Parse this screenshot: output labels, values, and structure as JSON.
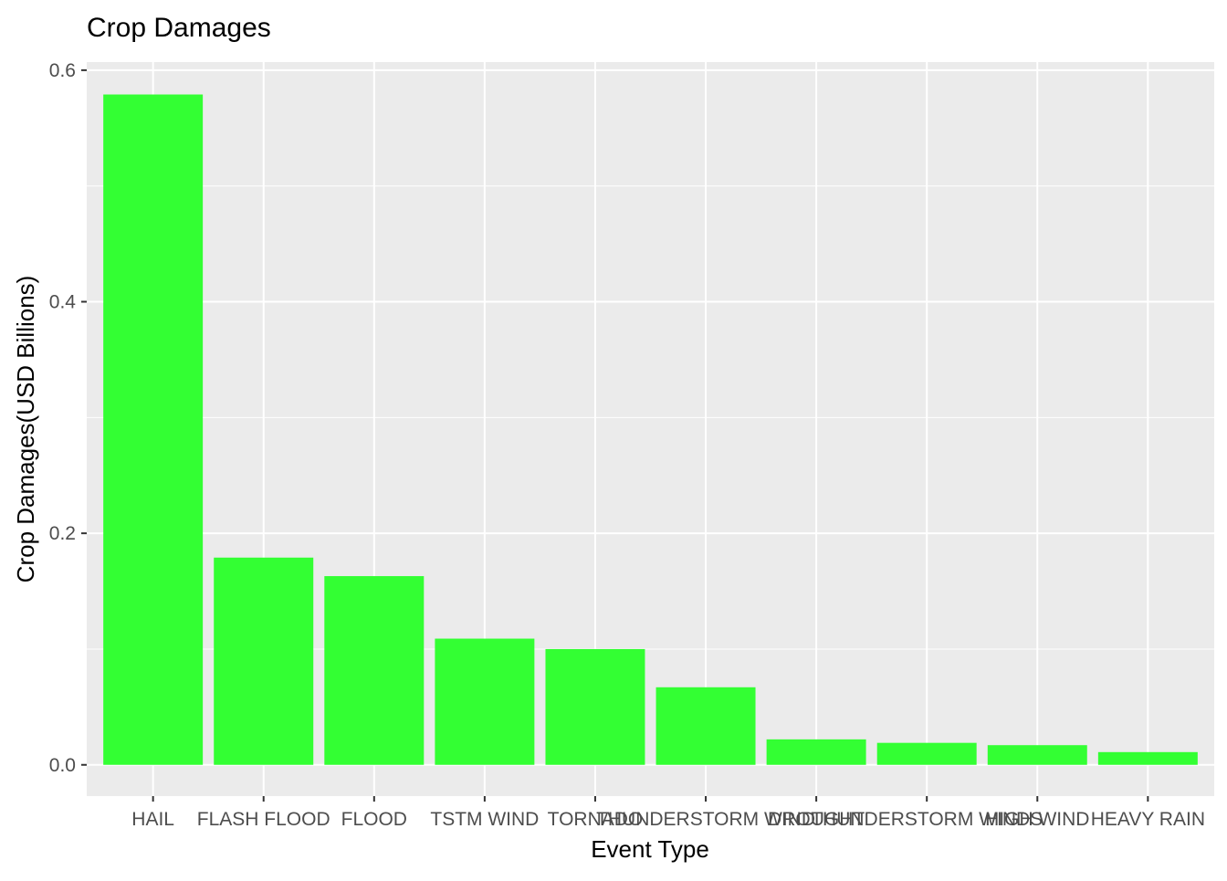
{
  "chart_data": {
    "type": "bar",
    "title": "Crop Damages",
    "xlabel": "Event Type",
    "ylabel": "Crop Damages(USD Billions)",
    "categories": [
      "HAIL",
      "FLASH FLOOD",
      "FLOOD",
      "TSTM WIND",
      "TORNADO",
      "THUNDERSTORM WIND",
      "DROUGHT",
      "THUNDERSTORM WINDS",
      "HIGH WIND",
      "HEAVY RAIN"
    ],
    "values": [
      0.579,
      0.179,
      0.163,
      0.109,
      0.1,
      0.067,
      0.022,
      0.019,
      0.017,
      0.011
    ],
    "ylim": [
      -0.027,
      0.607
    ],
    "yticks": [
      0.0,
      0.2,
      0.4,
      0.6
    ],
    "ytick_labels": [
      "0.0",
      "0.2",
      "0.4",
      "0.6"
    ],
    "grid": true,
    "legend": "none",
    "colors": {
      "bar": "#33ff33",
      "panel": "#ebebeb",
      "grid": "#ffffff",
      "tick": "#333333"
    }
  }
}
